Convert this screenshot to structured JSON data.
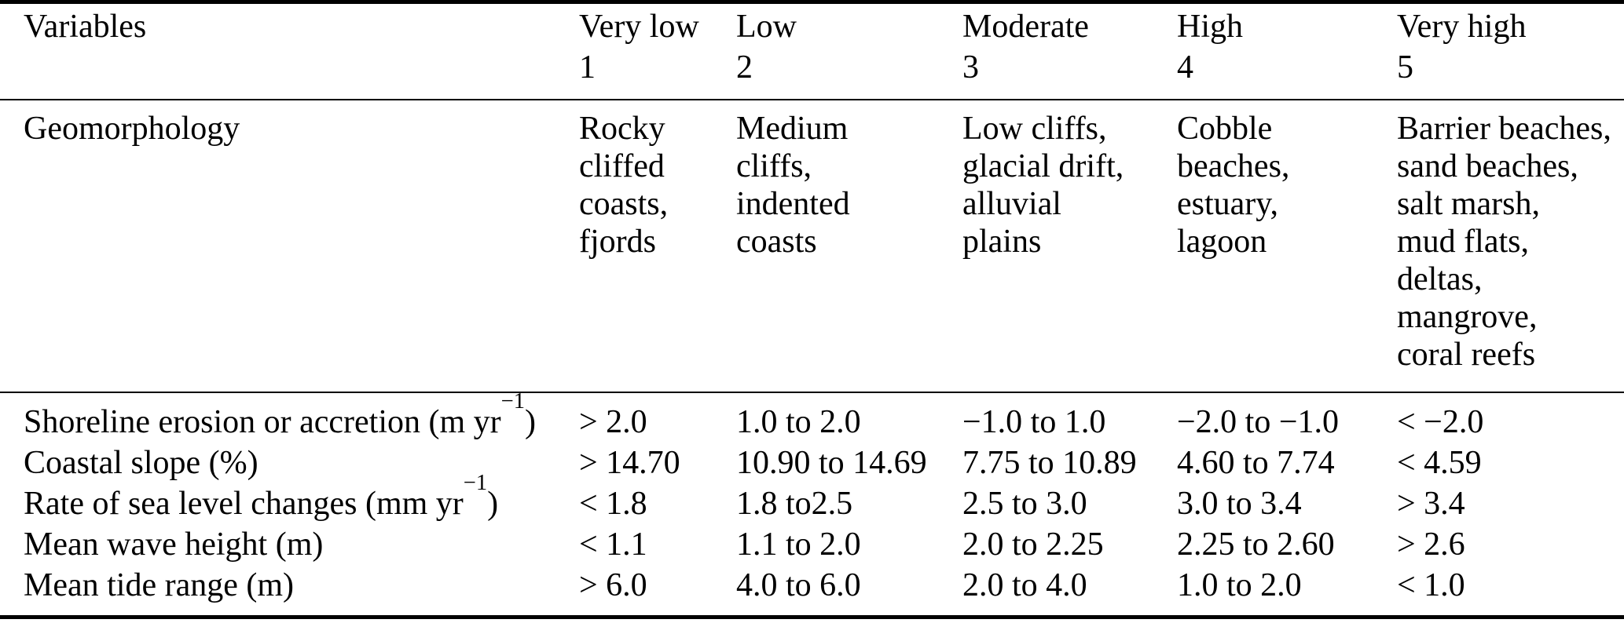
{
  "table": {
    "title_semantic": "Coastal vulnerability variable ranking table",
    "colors": {
      "text": "#000000",
      "background": "#ffffff",
      "rule": "#000000"
    },
    "header": {
      "variables_label": "Variables",
      "levels": [
        {
          "label": "Very low",
          "score": "1"
        },
        {
          "label": "Low",
          "score": "2"
        },
        {
          "label": "Moderate",
          "score": "3"
        },
        {
          "label": "High",
          "score": "4"
        },
        {
          "label": "Very high",
          "score": "5"
        }
      ]
    },
    "geomorphology_row": {
      "label": "Geomorphology",
      "cells": [
        "Rocky\ncliffed\ncoasts,\nfjords",
        "Medium\ncliffs,\nindented\ncoasts",
        "Low cliffs,\nglacial drift,\nalluvial\nplains",
        "Cobble\nbeaches,\nestuary,\nlagoon",
        "Barrier beaches,\nsand beaches,\nsalt marsh,\nmud flats,\ndeltas,\nmangrove,\ncoral reefs"
      ]
    },
    "numeric_rows": [
      {
        "label": "Shoreline erosion or accretion (m yr",
        "label_sup": "−1",
        "label_close": ")",
        "values": [
          "> 2.0",
          "1.0 to 2.0",
          "−1.0 to 1.0",
          "−2.0 to −1.0",
          "< −2.0"
        ]
      },
      {
        "label": "Coastal slope (%)",
        "label_sup": "",
        "label_close": "",
        "values": [
          "> 14.70",
          "10.90 to 14.69",
          "7.75 to 10.89",
          "4.60 to 7.74",
          "< 4.59"
        ]
      },
      {
        "label": "Rate of sea level changes (mm yr",
        "label_sup": "−1",
        "label_close": ")",
        "values": [
          "< 1.8",
          "1.8 to2.5",
          "2.5 to 3.0",
          "3.0 to 3.4",
          "> 3.4"
        ]
      },
      {
        "label": "Mean wave height (m)",
        "label_sup": "",
        "label_close": "",
        "values": [
          "< 1.1",
          "1.1 to 2.0",
          "2.0 to 2.25",
          "2.25 to 2.60",
          "> 2.6"
        ]
      },
      {
        "label": "Mean tide range (m)",
        "label_sup": "",
        "label_close": "",
        "values": [
          "> 6.0",
          "4.0 to 6.0",
          "2.0 to 4.0",
          "1.0 to 2.0",
          "< 1.0"
        ]
      }
    ]
  }
}
